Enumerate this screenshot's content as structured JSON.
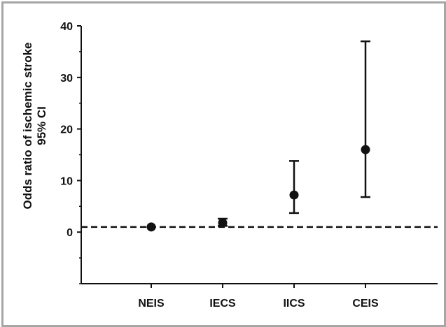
{
  "chart_data": {
    "type": "scatter",
    "title": "",
    "ylabel_line1": "Odds ratio of ischemic stroke",
    "ylabel_line2": "95% CI",
    "xlabel": "",
    "categories": [
      "NEIS",
      "IECS",
      "IICS",
      "CEIS"
    ],
    "series": [
      {
        "values": [
          1.0,
          1.8,
          7.2,
          16.0
        ],
        "ci_lower": [
          1.0,
          1.2,
          3.7,
          6.8
        ],
        "ci_upper": [
          1.0,
          2.6,
          13.8,
          37.0
        ]
      }
    ],
    "ylim": [
      -10,
      40
    ],
    "yticks": [
      0,
      10,
      20,
      30,
      40
    ],
    "reference_line": 1,
    "grid": false,
    "colors": {
      "marker": "#111111",
      "frame": "#a6a6a6"
    }
  }
}
